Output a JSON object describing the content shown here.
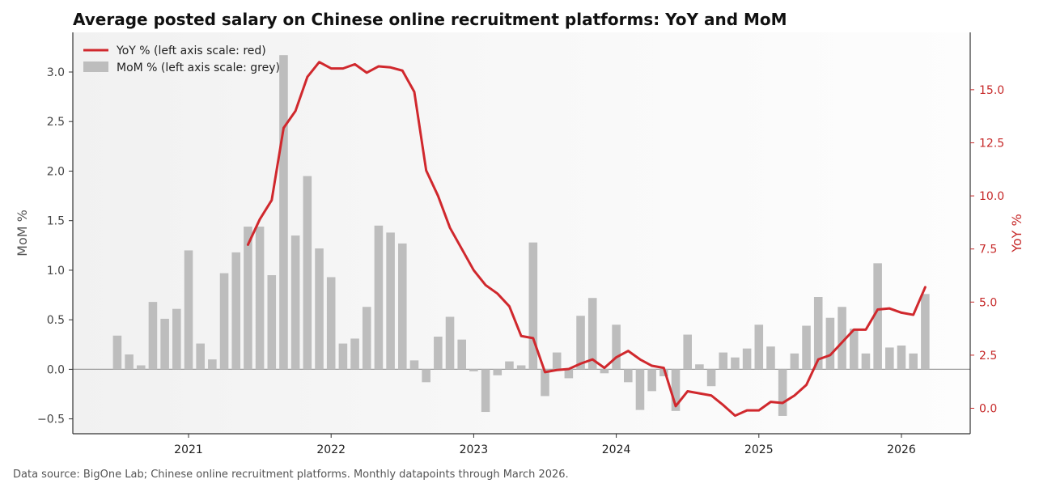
{
  "title": "Average posted salary on Chinese online recruitment platforms: YoY and MoM",
  "footer": "Data source: BigOne Lab; Chinese online recruitment platforms. Monthly datapoints through March 2026.",
  "colors": {
    "yoy": "#d0282d",
    "mom": "#bdbdbd",
    "zero_line": "#9e9e9e",
    "axis": "#333333",
    "right_axis": "#c62828"
  },
  "chart_data": {
    "type": "bar+line",
    "xlabel": "",
    "x_ticks": [
      "2021",
      "2022",
      "2023",
      "2024",
      "2025",
      "2026"
    ],
    "y_left": {
      "label": "MoM %",
      "ylim": [
        -0.65,
        3.4
      ],
      "ticks": [
        "−0.5",
        "0.0",
        "0.5",
        "1.0",
        "1.5",
        "2.0",
        "2.5",
        "3.0"
      ],
      "tick_values": [
        -0.5,
        0.0,
        0.5,
        1.0,
        1.5,
        2.0,
        2.5,
        3.0
      ]
    },
    "y_right": {
      "label": "YoY %",
      "ylim": [
        -1.2,
        17.7
      ],
      "ticks": [
        "0.0",
        "2.5",
        "5.0",
        "7.5",
        "10.0",
        "12.5",
        "15.0"
      ],
      "tick_values": [
        0.0,
        2.5,
        5.0,
        7.5,
        10.0,
        12.5,
        15.0
      ]
    },
    "legend": {
      "position": "top-left",
      "entries": [
        "YoY % (left axis scale: red)",
        "MoM % (left axis scale: grey)"
      ]
    },
    "grid": false,
    "mom": {
      "name": "MoM % (left axis scale: grey)",
      "x": [
        "2020-07",
        "2020-08",
        "2020-09",
        "2020-10",
        "2020-11",
        "2020-12",
        "2021-01",
        "2021-02",
        "2021-03",
        "2021-04",
        "2021-05",
        "2021-06",
        "2021-07",
        "2021-08",
        "2021-09",
        "2021-10",
        "2021-11",
        "2021-12",
        "2022-01",
        "2022-02",
        "2022-03",
        "2022-04",
        "2022-05",
        "2022-06",
        "2022-07",
        "2022-08",
        "2022-09",
        "2022-10",
        "2022-11",
        "2022-12",
        "2023-01",
        "2023-02",
        "2023-03",
        "2023-04",
        "2023-05",
        "2023-06",
        "2023-07",
        "2023-08",
        "2023-09",
        "2023-10",
        "2023-11",
        "2023-12",
        "2024-01",
        "2024-02",
        "2024-03",
        "2024-04",
        "2024-05",
        "2024-06",
        "2024-07",
        "2024-08",
        "2024-09",
        "2024-10",
        "2024-11",
        "2024-12",
        "2025-01",
        "2025-02",
        "2025-03",
        "2025-04",
        "2025-05",
        "2025-06",
        "2025-07",
        "2025-08",
        "2025-09",
        "2025-10",
        "2025-11",
        "2025-12",
        "2026-01",
        "2026-02",
        "2026-03"
      ],
      "values": [
        0.34,
        0.15,
        0.04,
        0.68,
        0.51,
        0.61,
        1.2,
        0.26,
        0.1,
        0.97,
        1.18,
        1.44,
        1.44,
        0.95,
        3.17,
        1.35,
        1.95,
        1.22,
        0.93,
        0.26,
        0.31,
        0.63,
        1.45,
        1.38,
        1.27,
        0.09,
        -0.13,
        0.33,
        0.53,
        0.3,
        -0.02,
        -0.43,
        -0.06,
        0.08,
        0.04,
        1.28,
        -0.27,
        0.17,
        -0.09,
        0.54,
        0.72,
        -0.04,
        0.45,
        -0.13,
        -0.41,
        -0.22,
        -0.07,
        -0.42,
        0.35,
        0.05,
        -0.17,
        0.17,
        0.12,
        0.21,
        0.45,
        0.23,
        -0.47,
        0.16,
        0.44,
        0.73,
        0.52,
        0.63,
        0.41,
        0.16,
        1.07,
        0.22,
        0.24,
        0.16,
        0.76
      ]
    },
    "yoy": {
      "name": "YoY % (left axis scale: red)",
      "x": [
        "2021-06",
        "2021-07",
        "2021-08",
        "2021-09",
        "2021-10",
        "2021-11",
        "2021-12",
        "2022-01",
        "2022-02",
        "2022-03",
        "2022-04",
        "2022-05",
        "2022-06",
        "2022-07",
        "2022-08",
        "2022-09",
        "2022-10",
        "2022-11",
        "2022-12",
        "2023-01",
        "2023-02",
        "2023-03",
        "2023-04",
        "2023-05",
        "2023-06",
        "2023-07",
        "2023-08",
        "2023-09",
        "2023-10",
        "2023-11",
        "2023-12",
        "2024-01",
        "2024-02",
        "2024-03",
        "2024-04",
        "2024-05",
        "2024-06",
        "2024-07",
        "2024-08",
        "2024-09",
        "2024-10",
        "2024-11",
        "2024-12",
        "2025-01",
        "2025-02",
        "2025-03",
        "2025-04",
        "2025-05",
        "2025-06",
        "2025-07",
        "2025-08",
        "2025-09",
        "2025-10",
        "2025-11",
        "2025-12",
        "2026-01",
        "2026-02",
        "2026-03"
      ],
      "values": [
        7.7,
        8.9,
        9.8,
        13.2,
        14.0,
        15.6,
        16.3,
        16.0,
        16.0,
        16.2,
        15.8,
        16.1,
        16.05,
        15.9,
        14.9,
        11.2,
        10.0,
        8.5,
        7.5,
        6.5,
        5.8,
        5.4,
        4.8,
        3.4,
        3.3,
        1.7,
        1.8,
        1.85,
        2.1,
        2.3,
        1.9,
        2.4,
        2.7,
        2.3,
        2.0,
        1.9,
        0.1,
        0.8,
        0.7,
        0.6,
        0.15,
        -0.35,
        -0.1,
        -0.1,
        0.3,
        0.25,
        0.6,
        1.1,
        2.3,
        2.5,
        3.1,
        3.7,
        3.7,
        4.65,
        4.7,
        4.5,
        4.4,
        5.7
      ]
    }
  }
}
